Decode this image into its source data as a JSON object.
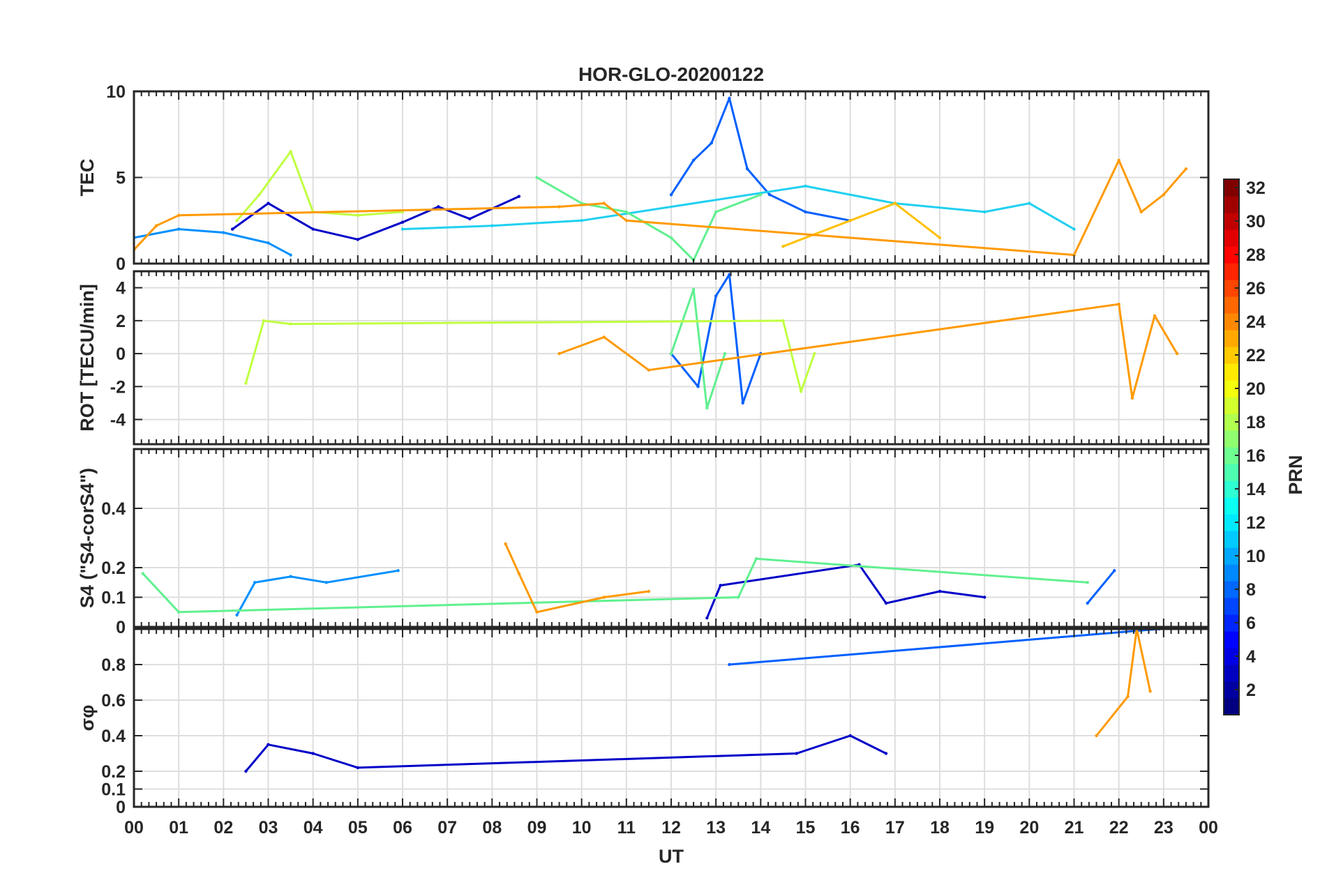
{
  "chart_data": {
    "title": "HOR-GLO-20200122",
    "xlabel": "UT",
    "x_tick_labels": [
      "00",
      "01",
      "02",
      "03",
      "04",
      "05",
      "06",
      "07",
      "08",
      "09",
      "10",
      "11",
      "12",
      "13",
      "14",
      "15",
      "16",
      "17",
      "18",
      "19",
      "20",
      "21",
      "22",
      "23",
      "00"
    ],
    "xlim": [
      0,
      24
    ],
    "grid": true,
    "colorbar": {
      "label": "PRN",
      "range": [
        1,
        32
      ],
      "tick_labels": [
        "2",
        "4",
        "6",
        "8",
        "10",
        "12",
        "14",
        "16",
        "18",
        "20",
        "22",
        "24",
        "26",
        "28",
        "30",
        "32"
      ],
      "colormap": "jet"
    },
    "panels": [
      {
        "type": "line",
        "ylabel": "TEC",
        "ylim": [
          0,
          10
        ],
        "ytick_labels": [
          "0",
          "5",
          "10"
        ],
        "series": [
          {
            "prn": 2,
            "color": "#0000c8",
            "x": [
              2.2,
              3.0,
              4.0,
              5.0,
              6.0,
              6.8,
              7.5,
              8.6
            ],
            "y": [
              2.0,
              3.5,
              2.0,
              1.4,
              2.4,
              3.3,
              2.6,
              3.9
            ]
          },
          {
            "prn": 6,
            "color": "#0060ff",
            "x": [
              12.0,
              12.5,
              12.9,
              13.3,
              13.7,
              14.2,
              15.0,
              16.0
            ],
            "y": [
              4.0,
              6.0,
              7.0,
              9.6,
              5.5,
              4.0,
              3.0,
              2.5
            ]
          },
          {
            "prn": 9,
            "color": "#0090ff",
            "x": [
              0.0,
              1.0,
              2.0,
              3.0,
              3.5
            ],
            "y": [
              1.5,
              2.0,
              1.8,
              1.2,
              0.5
            ]
          },
          {
            "prn": 13,
            "color": "#20d0f0",
            "x": [
              6.0,
              8.0,
              10.0,
              15.0,
              17.0,
              19.0,
              20.0,
              21.0
            ],
            "y": [
              2.0,
              2.2,
              2.5,
              4.5,
              3.5,
              3.0,
              3.5,
              2.0
            ]
          },
          {
            "prn": 16,
            "color": "#60f090",
            "x": [
              9.0,
              10.0,
              11.0,
              12.0,
              12.5,
              13.0,
              14.0
            ],
            "y": [
              5.0,
              3.5,
              3.0,
              1.5,
              0.2,
              3.0,
              4.0
            ]
          },
          {
            "prn": 18,
            "color": "#c0ff40",
            "x": [
              2.3,
              2.8,
              3.5,
              4.0,
              5.0,
              6.0
            ],
            "y": [
              2.5,
              4.0,
              6.5,
              3.0,
              2.8,
              3.0
            ]
          },
          {
            "prn": 21,
            "color": "#ffc000",
            "x": [
              14.5,
              16.0,
              17.0,
              18.0
            ],
            "y": [
              1.0,
              2.5,
              3.5,
              1.5
            ]
          },
          {
            "prn": 22,
            "color": "#ff9a00",
            "x": [
              0.0,
              0.5,
              1.0,
              9.5,
              10.5,
              11.0,
              21.0,
              22.0,
              22.5,
              23.0,
              23.5
            ],
            "y": [
              0.8,
              2.2,
              2.8,
              3.3,
              3.5,
              2.5,
              0.5,
              6.0,
              3.0,
              4.0,
              5.5
            ]
          }
        ]
      },
      {
        "type": "line",
        "ylabel": "ROT [TECU/min]",
        "ylim": [
          -5.5,
          5
        ],
        "ytick_labels": [
          "-4",
          "-2",
          "0",
          "2",
          "4"
        ],
        "series": [
          {
            "prn": 6,
            "color": "#0060ff",
            "x": [
              12.0,
              12.6,
              13.0,
              13.3,
              13.6,
              14.0
            ],
            "y": [
              0.0,
              -2.0,
              3.5,
              4.8,
              -3.0,
              0.0
            ]
          },
          {
            "prn": 16,
            "color": "#60f090",
            "x": [
              12.0,
              12.5,
              12.8,
              13.2
            ],
            "y": [
              0.0,
              3.9,
              -3.3,
              0.0
            ]
          },
          {
            "prn": 18,
            "color": "#c0ff40",
            "x": [
              2.5,
              2.9,
              3.5,
              14.5,
              14.9,
              15.2
            ],
            "y": [
              -1.8,
              2.0,
              1.8,
              2.0,
              -2.3,
              0.0
            ]
          },
          {
            "prn": 22,
            "color": "#ff9a00",
            "x": [
              9.5,
              10.5,
              11.5,
              22.0,
              22.3,
              22.8,
              23.3
            ],
            "y": [
              0.0,
              1.0,
              -1.0,
              3.0,
              -2.7,
              2.3,
              0.0
            ]
          }
        ]
      },
      {
        "type": "line",
        "ylabel": "S4 (\"S4-corS4\")",
        "ylim": [
          0,
          0.6
        ],
        "ytick_labels": [
          "0",
          "0.1",
          "0.2",
          "0.4"
        ],
        "series": [
          {
            "prn": 2,
            "color": "#0000c8",
            "x": [
              12.8,
              13.1,
              16.2,
              16.8,
              18.0,
              19.0
            ],
            "y": [
              0.03,
              0.14,
              0.21,
              0.08,
              0.12,
              0.1
            ]
          },
          {
            "prn": 6,
            "color": "#0060ff",
            "x": [
              21.3,
              21.9
            ],
            "y": [
              0.08,
              0.19
            ]
          },
          {
            "prn": 9,
            "color": "#0090ff",
            "x": [
              2.3,
              2.7,
              3.5,
              4.3,
              5.9
            ],
            "y": [
              0.04,
              0.15,
              0.17,
              0.15,
              0.19
            ]
          },
          {
            "prn": 16,
            "color": "#60f090",
            "x": [
              0.2,
              1.0,
              13.5,
              13.9,
              21.3
            ],
            "y": [
              0.18,
              0.05,
              0.1,
              0.23,
              0.15
            ]
          },
          {
            "prn": 22,
            "color": "#ff9a00",
            "x": [
              8.3,
              8.6,
              9.0,
              10.5,
              11.5
            ],
            "y": [
              0.28,
              0.18,
              0.05,
              0.1,
              0.12
            ]
          }
        ]
      },
      {
        "type": "line",
        "ylabel": "σφ",
        "ylim": [
          0,
          1
        ],
        "ytick_labels": [
          "0",
          "0.1",
          "0.2",
          "0.4",
          "0.6",
          "0.8"
        ],
        "series": [
          {
            "prn": 2,
            "color": "#0000c8",
            "x": [
              2.5,
              3.0,
              4.0,
              5.0,
              14.8,
              16.0,
              16.8
            ],
            "y": [
              0.2,
              0.35,
              0.3,
              0.22,
              0.3,
              0.4,
              0.3
            ]
          },
          {
            "prn": 6,
            "color": "#0060ff",
            "x": [
              13.3,
              22.9
            ],
            "y": [
              0.8,
              1.0
            ]
          },
          {
            "prn": 22,
            "color": "#ff9a00",
            "x": [
              21.5,
              22.2,
              22.4,
              22.7
            ],
            "y": [
              0.4,
              0.62,
              1.0,
              0.65
            ]
          }
        ]
      }
    ]
  }
}
